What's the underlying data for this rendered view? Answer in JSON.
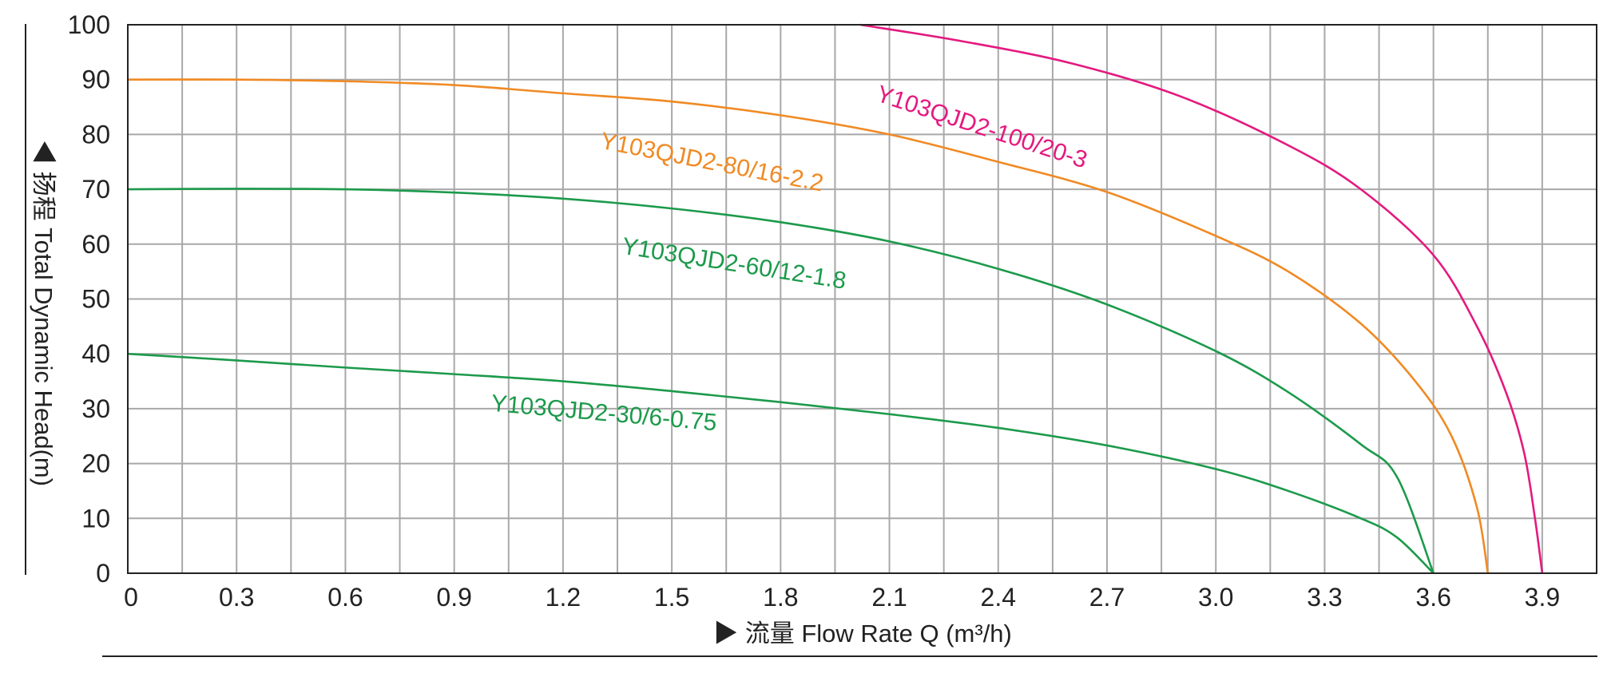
{
  "chart_data": {
    "type": "line",
    "xlabel": "▶ 流量 Flow Rate Q (m³/h)",
    "ylabel": "◀ 扬程 Total Dynamic Head(m)",
    "xlim": [
      0,
      4.05
    ],
    "ylim": [
      0,
      100
    ],
    "x_tick_labels": [
      "0",
      "0.3",
      "0.6",
      "0.9",
      "1.2",
      "1.5",
      "1.8",
      "2.1",
      "2.4",
      "2.7",
      "3.0",
      "3.3",
      "3.6",
      "3.9"
    ],
    "y_tick_labels": [
      "0",
      "10",
      "20",
      "30",
      "40",
      "50",
      "60",
      "70",
      "80",
      "90",
      "100"
    ],
    "grid": true,
    "series": [
      {
        "name": "Y103QJD2-100/20-3",
        "color": "#e4197f",
        "x": [
          2.02,
          2.3,
          2.6,
          2.9,
          3.2,
          3.4,
          3.6,
          3.72,
          3.8,
          3.85,
          3.88,
          3.9
        ],
        "y": [
          100,
          97,
          93,
          87,
          78,
          70,
          58,
          45,
          33,
          22,
          10,
          0
        ]
      },
      {
        "name": "Y103QJD2-80/16-2.2",
        "color": "#f08a24",
        "x": [
          0,
          0.3,
          0.6,
          0.9,
          1.2,
          1.5,
          1.8,
          2.1,
          2.4,
          2.7,
          3.0,
          3.2,
          3.4,
          3.55,
          3.65,
          3.72,
          3.75
        ],
        "y": [
          90,
          90,
          89.7,
          89,
          87.5,
          86,
          83.5,
          80,
          75,
          69.5,
          61.5,
          55,
          45.5,
          35,
          25,
          12,
          0
        ]
      },
      {
        "name": "Y103QJD2-60/12-1.8",
        "color": "#1c9a4b",
        "x": [
          0,
          0.3,
          0.6,
          0.9,
          1.2,
          1.5,
          1.8,
          2.1,
          2.4,
          2.7,
          3.0,
          3.2,
          3.4,
          3.5,
          3.6
        ],
        "y": [
          70,
          70.1,
          70,
          69.4,
          68.3,
          66.5,
          64,
          60.5,
          55.5,
          49,
          40.5,
          33,
          23.5,
          17.5,
          0
        ]
      },
      {
        "name": "Y103QJD2-30/6-0.75",
        "color": "#1c9a4b",
        "x": [
          0,
          0.3,
          0.6,
          0.9,
          1.2,
          1.5,
          1.8,
          2.1,
          2.4,
          2.7,
          3.0,
          3.2,
          3.4,
          3.5,
          3.6
        ],
        "y": [
          40,
          38.8,
          37.5,
          36.3,
          35,
          33.2,
          31.2,
          29,
          26.5,
          23.3,
          19,
          15,
          10,
          6.5,
          0
        ]
      }
    ]
  }
}
